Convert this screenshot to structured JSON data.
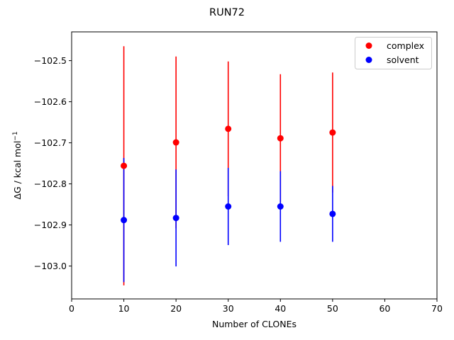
{
  "chart_data": {
    "type": "scatter",
    "title": "RUN72",
    "xlabel": "Number of CLONEs",
    "ylabel_main": "ΔG / kcal mol",
    "ylabel_sup": "−1",
    "xlim": [
      0,
      70
    ],
    "ylim": [
      -103.08,
      -102.43
    ],
    "xticks": [
      0,
      10,
      20,
      30,
      40,
      50,
      60,
      70
    ],
    "yticks": [
      -103.0,
      -102.9,
      -102.8,
      -102.7,
      -102.6,
      -102.5
    ],
    "ytick_labels": [
      "−103.0",
      "−102.9",
      "−102.8",
      "−102.7",
      "−102.6",
      "−102.5"
    ],
    "grid": false,
    "legend_position": "top-right",
    "series": [
      {
        "name": "complex",
        "color": "#ff0000",
        "points": [
          {
            "x": 10,
            "y": -102.756,
            "err": 0.291
          },
          {
            "x": 20,
            "y": -102.699,
            "err": 0.209
          },
          {
            "x": 30,
            "y": -102.666,
            "err": 0.164
          },
          {
            "x": 40,
            "y": -102.689,
            "err": 0.156
          },
          {
            "x": 50,
            "y": -102.675,
            "err": 0.146
          }
        ]
      },
      {
        "name": "solvent",
        "color": "#0000ff",
        "points": [
          {
            "x": 10,
            "y": -102.888,
            "err": 0.151
          },
          {
            "x": 20,
            "y": -102.883,
            "err": 0.118
          },
          {
            "x": 30,
            "y": -102.855,
            "err": 0.094
          },
          {
            "x": 40,
            "y": -102.855,
            "err": 0.086
          },
          {
            "x": 50,
            "y": -102.873,
            "err": 0.068
          }
        ]
      }
    ]
  }
}
